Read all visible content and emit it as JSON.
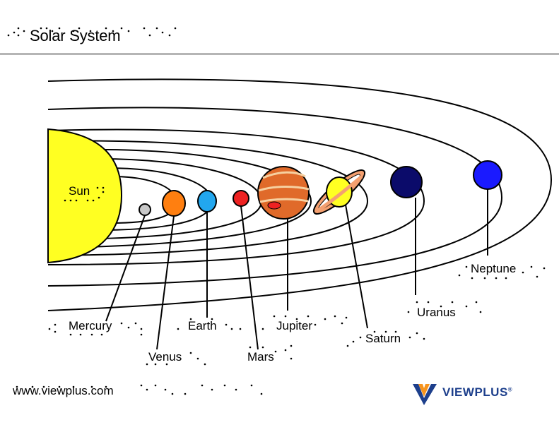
{
  "header": {
    "title": "Solar System"
  },
  "bodies": [
    {
      "id": "sun",
      "label": "Sun"
    },
    {
      "id": "mercury",
      "label": "Mercury",
      "color": "#c8c8c8"
    },
    {
      "id": "venus",
      "label": "Venus",
      "color": "#ff7f10"
    },
    {
      "id": "earth",
      "label": "Earth",
      "color": "#22a7ef"
    },
    {
      "id": "mars",
      "label": "Mars",
      "color": "#ee2222"
    },
    {
      "id": "jupiter",
      "label": "Jupiter",
      "color": "#e06a2a"
    },
    {
      "id": "saturn",
      "label": "Saturn",
      "color": "#ffff22"
    },
    {
      "id": "uranus",
      "label": "Uranus",
      "color": "#0b0b6a"
    },
    {
      "id": "neptune",
      "label": "Neptune",
      "color": "#1a1aff"
    }
  ],
  "colors": {
    "sun": "#ffff22",
    "saturn_ring": "#f4a070",
    "logo_blue": "#1d3f8c",
    "logo_orange": "#f7941d"
  },
  "footer": {
    "url": "www.viewplus.com",
    "logo": "VIEWPLUS",
    "logo_mark": "®"
  }
}
